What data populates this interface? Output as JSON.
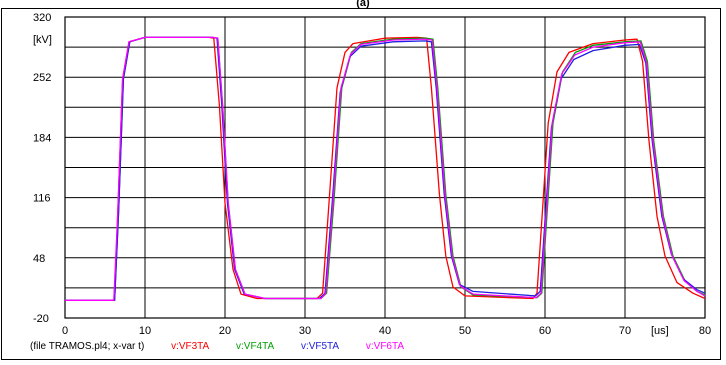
{
  "chart_data": {
    "type": "line",
    "title": "(a)",
    "ylabel": "[kV]",
    "xlabel": "[us]",
    "xlim": [
      0,
      80
    ],
    "ylim": [
      -20,
      320
    ],
    "x_ticks": [
      "0",
      "10",
      "20",
      "30",
      "40",
      "50",
      "60",
      "70",
      "80"
    ],
    "y_ticks": [
      "320",
      "252",
      "184",
      "116",
      "48",
      "-20"
    ],
    "grid": true,
    "legend_position": "bottom",
    "legend_prefix": "(file TRAMOS.pl4; x-var t)",
    "series": [
      {
        "name": "v:VF3TA",
        "color": "#ff0000",
        "points": [
          [
            0,
            0
          ],
          [
            6.2,
            0
          ],
          [
            6.6,
            100
          ],
          [
            7.2,
            250
          ],
          [
            8,
            292
          ],
          [
            10,
            297
          ],
          [
            18,
            297
          ],
          [
            18.6,
            296
          ],
          [
            19.3,
            220
          ],
          [
            20,
            110
          ],
          [
            21,
            35
          ],
          [
            22,
            7
          ],
          [
            24,
            2
          ],
          [
            31.5,
            2
          ],
          [
            32.2,
            8
          ],
          [
            33,
            110
          ],
          [
            34,
            240
          ],
          [
            35,
            280
          ],
          [
            36,
            290
          ],
          [
            40,
            296
          ],
          [
            44,
            297
          ],
          [
            45.2,
            296
          ],
          [
            45.8,
            240
          ],
          [
            46.8,
            120
          ],
          [
            47.6,
            50
          ],
          [
            48.5,
            15
          ],
          [
            50,
            5
          ],
          [
            58.5,
            2
          ],
          [
            59,
            8
          ],
          [
            59.6,
            90
          ],
          [
            60.4,
            200
          ],
          [
            61.5,
            258
          ],
          [
            63,
            280
          ],
          [
            66,
            290
          ],
          [
            70,
            294
          ],
          [
            71.5,
            295
          ],
          [
            72.2,
            270
          ],
          [
            73,
            180
          ],
          [
            74,
            95
          ],
          [
            75,
            50
          ],
          [
            76.5,
            20
          ],
          [
            78.5,
            8
          ],
          [
            80,
            2
          ]
        ]
      },
      {
        "name": "v:VF4TA",
        "color": "#00a000",
        "points": [
          [
            0,
            0
          ],
          [
            6.2,
            0
          ],
          [
            6.7,
            100
          ],
          [
            7.3,
            250
          ],
          [
            8.1,
            292
          ],
          [
            10,
            297
          ],
          [
            18.5,
            297
          ],
          [
            19.1,
            296
          ],
          [
            19.7,
            220
          ],
          [
            20.4,
            110
          ],
          [
            21.3,
            35
          ],
          [
            22.5,
            7
          ],
          [
            25,
            2
          ],
          [
            32,
            2
          ],
          [
            32.7,
            8
          ],
          [
            33.6,
            110
          ],
          [
            34.6,
            240
          ],
          [
            35.8,
            280
          ],
          [
            37,
            290
          ],
          [
            41,
            295
          ],
          [
            45,
            296
          ],
          [
            46,
            295
          ],
          [
            46.6,
            240
          ],
          [
            47.6,
            120
          ],
          [
            48.5,
            50
          ],
          [
            49.5,
            15
          ],
          [
            51,
            6
          ],
          [
            59,
            3
          ],
          [
            59.6,
            8
          ],
          [
            60.2,
            90
          ],
          [
            61,
            200
          ],
          [
            62.2,
            258
          ],
          [
            63.8,
            280
          ],
          [
            66,
            288
          ],
          [
            70,
            292
          ],
          [
            72,
            293
          ],
          [
            72.8,
            270
          ],
          [
            73.6,
            180
          ],
          [
            74.8,
            95
          ],
          [
            76,
            50
          ],
          [
            77.5,
            22
          ],
          [
            79,
            10
          ],
          [
            80,
            6
          ]
        ]
      },
      {
        "name": "v:VF5TA",
        "color": "#2020e0",
        "points": [
          [
            0,
            0
          ],
          [
            6.2,
            0
          ],
          [
            6.7,
            100
          ],
          [
            7.3,
            250
          ],
          [
            8.1,
            292
          ],
          [
            10,
            297
          ],
          [
            18.4,
            297
          ],
          [
            19,
            296
          ],
          [
            19.6,
            220
          ],
          [
            20.3,
            110
          ],
          [
            21.2,
            35
          ],
          [
            22.4,
            7
          ],
          [
            25,
            2
          ],
          [
            31.8,
            2
          ],
          [
            32.5,
            8
          ],
          [
            33.4,
            110
          ],
          [
            34.4,
            235
          ],
          [
            35.6,
            275
          ],
          [
            37,
            287
          ],
          [
            41,
            292
          ],
          [
            45,
            293
          ],
          [
            45.8,
            292
          ],
          [
            46.4,
            240
          ],
          [
            47.4,
            120
          ],
          [
            48.3,
            50
          ],
          [
            49.3,
            18
          ],
          [
            51,
            10
          ],
          [
            58.8,
            5
          ],
          [
            59.4,
            10
          ],
          [
            60,
            90
          ],
          [
            60.8,
            195
          ],
          [
            62,
            250
          ],
          [
            63.6,
            272
          ],
          [
            66,
            282
          ],
          [
            70,
            288
          ],
          [
            71.8,
            289
          ],
          [
            72.6,
            268
          ],
          [
            73.4,
            180
          ],
          [
            74.6,
            95
          ],
          [
            75.8,
            52
          ],
          [
            77.3,
            24
          ],
          [
            79,
            12
          ],
          [
            80,
            8
          ]
        ]
      },
      {
        "name": "v:VF6TA",
        "color": "#ff00ff",
        "points": [
          [
            0,
            0
          ],
          [
            6.1,
            0
          ],
          [
            6.6,
            100
          ],
          [
            7.2,
            250
          ],
          [
            8,
            292
          ],
          [
            10,
            297
          ],
          [
            18.5,
            297
          ],
          [
            19.1,
            296
          ],
          [
            19.7,
            220
          ],
          [
            20.4,
            110
          ],
          [
            21.3,
            35
          ],
          [
            22.5,
            7
          ],
          [
            25,
            2
          ],
          [
            32,
            2
          ],
          [
            32.6,
            8
          ],
          [
            33.5,
            110
          ],
          [
            34.5,
            240
          ],
          [
            35.7,
            278
          ],
          [
            37,
            289
          ],
          [
            41,
            294
          ],
          [
            45,
            295
          ],
          [
            45.9,
            294
          ],
          [
            46.5,
            240
          ],
          [
            47.5,
            120
          ],
          [
            48.4,
            50
          ],
          [
            49.4,
            16
          ],
          [
            51,
            7
          ],
          [
            58.9,
            3
          ],
          [
            59.5,
            8
          ],
          [
            60.1,
            90
          ],
          [
            60.9,
            200
          ],
          [
            62.1,
            256
          ],
          [
            63.7,
            277
          ],
          [
            66,
            286
          ],
          [
            70,
            291
          ],
          [
            71.9,
            292
          ],
          [
            72.7,
            268
          ],
          [
            73.5,
            180
          ],
          [
            74.7,
            95
          ],
          [
            75.9,
            50
          ],
          [
            77.4,
            22
          ],
          [
            79,
            10
          ],
          [
            80,
            5
          ]
        ]
      }
    ]
  }
}
